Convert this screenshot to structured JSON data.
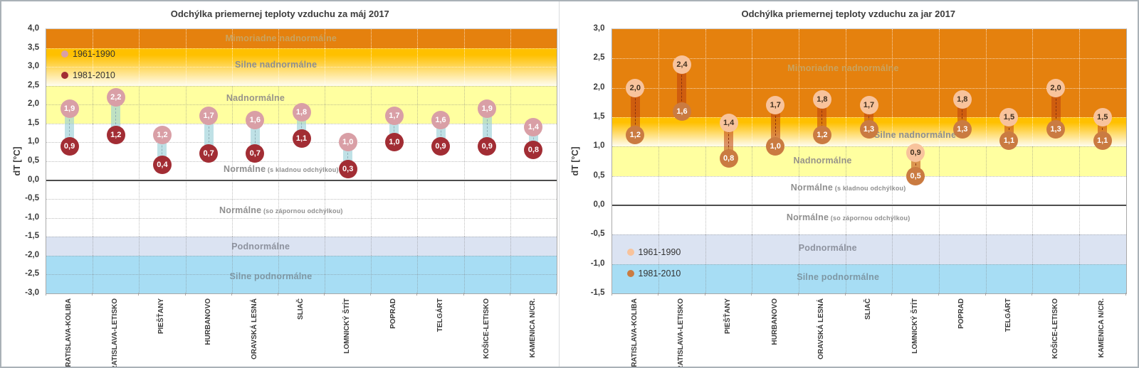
{
  "chart_data": [
    {
      "type": "lollipop-range",
      "title": "Odchýlka priemernej teploty vzduchu za máj 2017",
      "ylabel": "dT [°C]",
      "ylim": [
        -3.0,
        4.0
      ],
      "ytick_step": 0.5,
      "grid": true,
      "legend": {
        "position": "top-left"
      },
      "categories": [
        "BRATISLAVA-KOLIBA",
        "BRATISLAVA-LETISKO",
        "PIEŠŤANY",
        "HURBANOVO",
        "ORAVSKÁ LESNÁ",
        "SLIAČ",
        "LOMNICKÝ ŠTÍT",
        "POPRAD",
        "TELGÁRT",
        "KOŠICE-LETISKO",
        "KAMENICA N/CR."
      ],
      "series": [
        {
          "name": "1961-1990",
          "values": [
            1.9,
            2.2,
            1.2,
            1.7,
            1.6,
            1.8,
            1.0,
            1.7,
            1.6,
            1.9,
            1.4
          ],
          "dot_color": "#d99fa6",
          "text_color": "#ffffff"
        },
        {
          "name": "1981-2010",
          "values": [
            0.9,
            1.2,
            0.4,
            0.7,
            0.7,
            1.1,
            0.3,
            1.0,
            0.9,
            0.9,
            0.8
          ],
          "dot_color": "#a22d34",
          "text_color": "#ffffff"
        }
      ],
      "connector": {
        "color": "rgba(151,206,215,0.62)",
        "dash_color": "#8fb0b8"
      },
      "bands": [
        {
          "label": "Mimoriadne nadnormálne",
          "sublabel": "",
          "from": 3.5,
          "to": 4.0,
          "color": "#e5810e",
          "label_color": "#c9a35f",
          "label_y": 3.76,
          "label_x": 0.46
        },
        {
          "label": "Silne nadnormálne",
          "sublabel": "",
          "from": 2.5,
          "to": 3.5,
          "color": "#ffc000",
          "color2": "#fffdf0",
          "label_color": "#8b8e92",
          "label_y": 3.05,
          "label_x": 0.45
        },
        {
          "label": "Nadnormálne",
          "sublabel": "",
          "from": 1.5,
          "to": 2.5,
          "color": "#ffffa0",
          "label_color": "#97938a",
          "label_y": 2.17,
          "label_x": 0.41
        },
        {
          "label": "Normálne",
          "sublabel": "(s kladnou odchýlkou)",
          "from": 0.0,
          "to": 1.5,
          "color": "#ffffff",
          "label_color": "#8f8f8f",
          "label_y": 0.3,
          "label_x": 0.46
        },
        {
          "label": "Normálne",
          "sublabel": "(so zápornou odchýlkou)",
          "from": -1.5,
          "to": 0.0,
          "color": "#ffffff",
          "label_color": "#8f8f8f",
          "label_y": -0.8,
          "label_x": 0.46
        },
        {
          "label": "Podnormálne",
          "sublabel": "",
          "from": -2.0,
          "to": -1.5,
          "color": "#dbe3f2",
          "label_color": "#8d929e",
          "label_y": -1.75,
          "label_x": 0.42
        },
        {
          "label": "Silne podnormálne",
          "sublabel": "",
          "from": -3.0,
          "to": -2.0,
          "color": "#a7ddf4",
          "label_color": "#7e97a4",
          "label_y": -2.55,
          "label_x": 0.44
        }
      ]
    },
    {
      "type": "lollipop-range",
      "title": "Odchýlka priemernej teploty vzduchu za jar 2017",
      "ylabel": "dT [°C]",
      "ylim": [
        -1.5,
        3.0
      ],
      "ytick_step": 0.5,
      "grid": true,
      "legend": {
        "position": "bottom-left"
      },
      "categories": [
        "BRATISLAVA-KOLIBA",
        "BRATISLAVA-LETISKO",
        "PIEŠŤANY",
        "HURBANOVO",
        "ORAVSKÁ LESNÁ",
        "SLIAČ",
        "LOMNICKÝ ŠTÍT",
        "POPRAD",
        "TELGÁRT",
        "KOŠICE-LETISKO",
        "KAMENICA N/CR."
      ],
      "series": [
        {
          "name": "1961-1990",
          "values": [
            2.0,
            2.4,
            1.4,
            1.7,
            1.8,
            1.7,
            0.9,
            1.8,
            1.5,
            2.0,
            1.5
          ],
          "dot_color": "#f8c39c",
          "text_color": "#41301f"
        },
        {
          "name": "1981-2010",
          "values": [
            1.2,
            1.6,
            0.8,
            1.0,
            1.2,
            1.3,
            0.5,
            1.3,
            1.1,
            1.3,
            1.1
          ],
          "dot_color": "#ca7b41",
          "text_color": "#ffffff"
        }
      ],
      "connector": {
        "color": "rgba(189,64,15,0.55)",
        "dash_color": "#8a3310"
      },
      "bands": [
        {
          "label": "Mimoriadne nadnormálne",
          "sublabel": "",
          "from": 1.5,
          "to": 3.0,
          "color": "#e5810e",
          "label_color": "#c9a35f",
          "label_y": 2.33,
          "label_x": 0.45
        },
        {
          "label": "Silne nadnormálne",
          "sublabel": "",
          "from": 1.0,
          "to": 1.5,
          "color": "#ffc000",
          "color2": "#fffdf0",
          "label_color": "#8b8e92",
          "label_y": 1.2,
          "label_x": 0.59
        },
        {
          "label": "Nadnormálne",
          "sublabel": "",
          "from": 0.5,
          "to": 1.0,
          "color": "#ffffa0",
          "label_color": "#97938a",
          "label_y": 0.76,
          "label_x": 0.41
        },
        {
          "label": "Normálne",
          "sublabel": "(s kladnou odchýlkou)",
          "from": 0.0,
          "to": 0.5,
          "color": "#ffffff",
          "label_color": "#8f8f8f",
          "label_y": 0.3,
          "label_x": 0.46
        },
        {
          "label": "Normálne",
          "sublabel": "(so zápornou odchýlkou)",
          "from": -0.5,
          "to": 0.0,
          "color": "#ffffff",
          "label_color": "#8f8f8f",
          "label_y": -0.2,
          "label_x": 0.46
        },
        {
          "label": "Podnormálne",
          "sublabel": "",
          "from": -1.0,
          "to": -0.5,
          "color": "#dbe3f2",
          "label_color": "#8d929e",
          "label_y": -0.72,
          "label_x": 0.42
        },
        {
          "label": "Silne podnormálne",
          "sublabel": "",
          "from": -1.5,
          "to": -1.0,
          "color": "#a7ddf4",
          "label_color": "#7e97a4",
          "label_y": -1.22,
          "label_x": 0.44
        }
      ]
    }
  ]
}
